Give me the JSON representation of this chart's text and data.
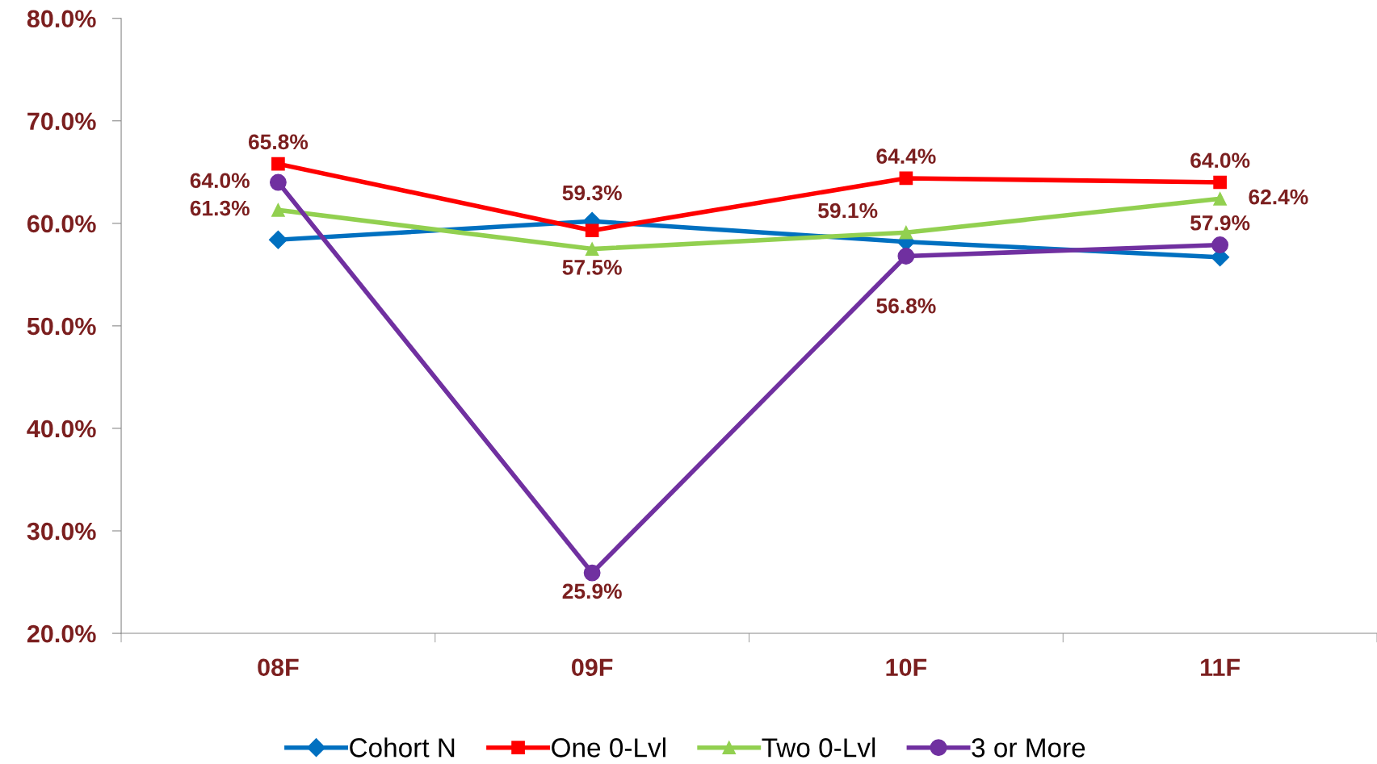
{
  "chart_data": {
    "type": "line",
    "categories": [
      "08F",
      "09F",
      "10F",
      "11F"
    ],
    "series": [
      {
        "name": "Cohort N",
        "color": "#0070c0",
        "marker": "diamond",
        "values": [
          58.4,
          60.2,
          58.2,
          56.7
        ]
      },
      {
        "name": "One 0-Lvl",
        "color": "#ff0000",
        "marker": "square",
        "values": [
          65.8,
          59.3,
          64.4,
          64.0
        ],
        "value_labels": [
          "65.8%",
          "59.3%",
          "64.4%",
          "64.0%"
        ]
      },
      {
        "name": "Two 0-Lvl",
        "color": "#92d050",
        "marker": "triangle",
        "values": [
          61.3,
          57.5,
          59.1,
          62.4
        ],
        "value_labels": [
          "61.3%",
          "57.5%",
          "59.1%",
          "62.4%"
        ]
      },
      {
        "name": "3 or More",
        "color": "#7030a0",
        "marker": "circle",
        "values": [
          64.0,
          25.9,
          56.8,
          57.9
        ],
        "value_labels": [
          "64.0%",
          "25.9%",
          "56.8%",
          "57.9%"
        ]
      }
    ],
    "ylim": [
      20,
      80
    ],
    "yticks": [
      {
        "value": 20,
        "label": "20.0%"
      },
      {
        "value": 30,
        "label": "30.0%"
      },
      {
        "value": 40,
        "label": "40.0%"
      },
      {
        "value": 50,
        "label": "50.0%"
      },
      {
        "value": 60,
        "label": "60.0%"
      },
      {
        "value": 70,
        "label": "70.0%"
      },
      {
        "value": 80,
        "label": "80.0%"
      }
    ],
    "grid": false,
    "legend": "bottom"
  }
}
